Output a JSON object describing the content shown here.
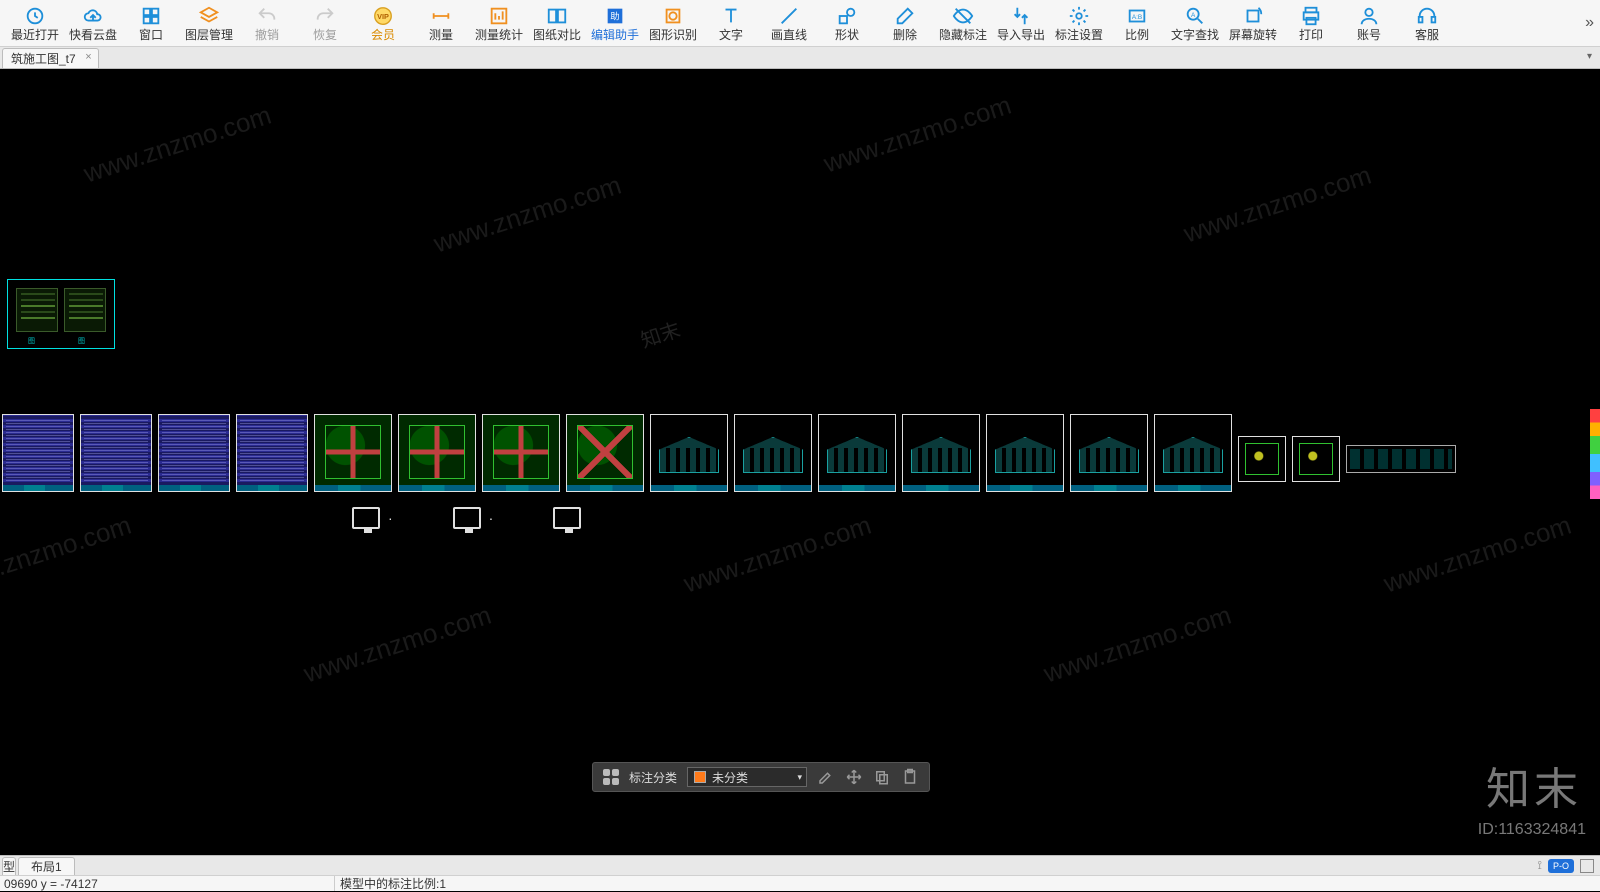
{
  "colors": {
    "toolbar_bg": "#f6f6f6",
    "canvas_bg": "#000000",
    "icon_blue": "#1e8fd9",
    "icon_orange": "#f09020",
    "icon_gray": "#999999",
    "vip_gold": "#d9a020",
    "accent_cyan": "#00e0e0",
    "floatbar_bg": "#3a3a3a",
    "swatch_orange": "#ff7a1a"
  },
  "toolbar": {
    "more_glyph": "»",
    "items": [
      {
        "label": "最近打开",
        "icon": "clock"
      },
      {
        "label": "快看云盘",
        "icon": "cloud"
      },
      {
        "label": "窗口",
        "icon": "windows"
      },
      {
        "label": "图层管理",
        "icon": "layers"
      },
      {
        "label": "撤销",
        "icon": "undo",
        "disabled": true
      },
      {
        "label": "恢复",
        "icon": "redo",
        "disabled": true
      },
      {
        "label": "会员",
        "icon": "vip",
        "vip": true
      },
      {
        "label": "测量",
        "icon": "measure"
      },
      {
        "label": "测量统计",
        "icon": "measure-stats"
      },
      {
        "label": "图纸对比",
        "icon": "compare"
      },
      {
        "label": "编辑助手",
        "icon": "edit-assist",
        "accent": true
      },
      {
        "label": "图形识别",
        "icon": "shape-detect"
      },
      {
        "label": "文字",
        "icon": "text"
      },
      {
        "label": "画直线",
        "icon": "line"
      },
      {
        "label": "形状",
        "icon": "shapes"
      },
      {
        "label": "删除",
        "icon": "erase"
      },
      {
        "label": "隐藏标注",
        "icon": "hide-anno"
      },
      {
        "label": "导入导出",
        "icon": "import-export"
      },
      {
        "label": "标注设置",
        "icon": "anno-settings"
      },
      {
        "label": "比例",
        "icon": "ratio"
      },
      {
        "label": "文字查找",
        "icon": "find-text"
      },
      {
        "label": "屏幕旋转",
        "icon": "rotate"
      },
      {
        "label": "打印",
        "icon": "print"
      },
      {
        "label": "账号",
        "icon": "account"
      },
      {
        "label": "客服",
        "icon": "support"
      }
    ]
  },
  "doc_tab": {
    "title": "筑施工图_t7",
    "close": "×"
  },
  "tabbar_chevron": "▾",
  "selected_preview": {
    "caption_a": "图",
    "caption_b": "图"
  },
  "sheets": [
    {
      "kind": "txt"
    },
    {
      "kind": "txt"
    },
    {
      "kind": "txt"
    },
    {
      "kind": "txt"
    },
    {
      "kind": "plan"
    },
    {
      "kind": "plan"
    },
    {
      "kind": "plan"
    },
    {
      "kind": "plan",
      "variant": "x"
    },
    {
      "kind": "elev"
    },
    {
      "kind": "elev"
    },
    {
      "kind": "elev"
    },
    {
      "kind": "elev"
    },
    {
      "kind": "elev"
    },
    {
      "kind": "elev"
    },
    {
      "kind": "elev"
    },
    {
      "kind": "sm"
    },
    {
      "kind": "sm"
    },
    {
      "kind": "strip"
    }
  ],
  "floatbar": {
    "category_label": "标注分类",
    "select_value": "未分类",
    "select_chevron": "▾"
  },
  "layout_tabs": {
    "stub": "型",
    "tab1": "布局1"
  },
  "layoutbar_pill": "P-O",
  "status": {
    "coords": "09690  y = -74127",
    "scale": "模型中的标注比例:1"
  },
  "watermark": {
    "text": "www.znzmo.com",
    "logo": "知末",
    "id_label": "ID:1163324841"
  }
}
